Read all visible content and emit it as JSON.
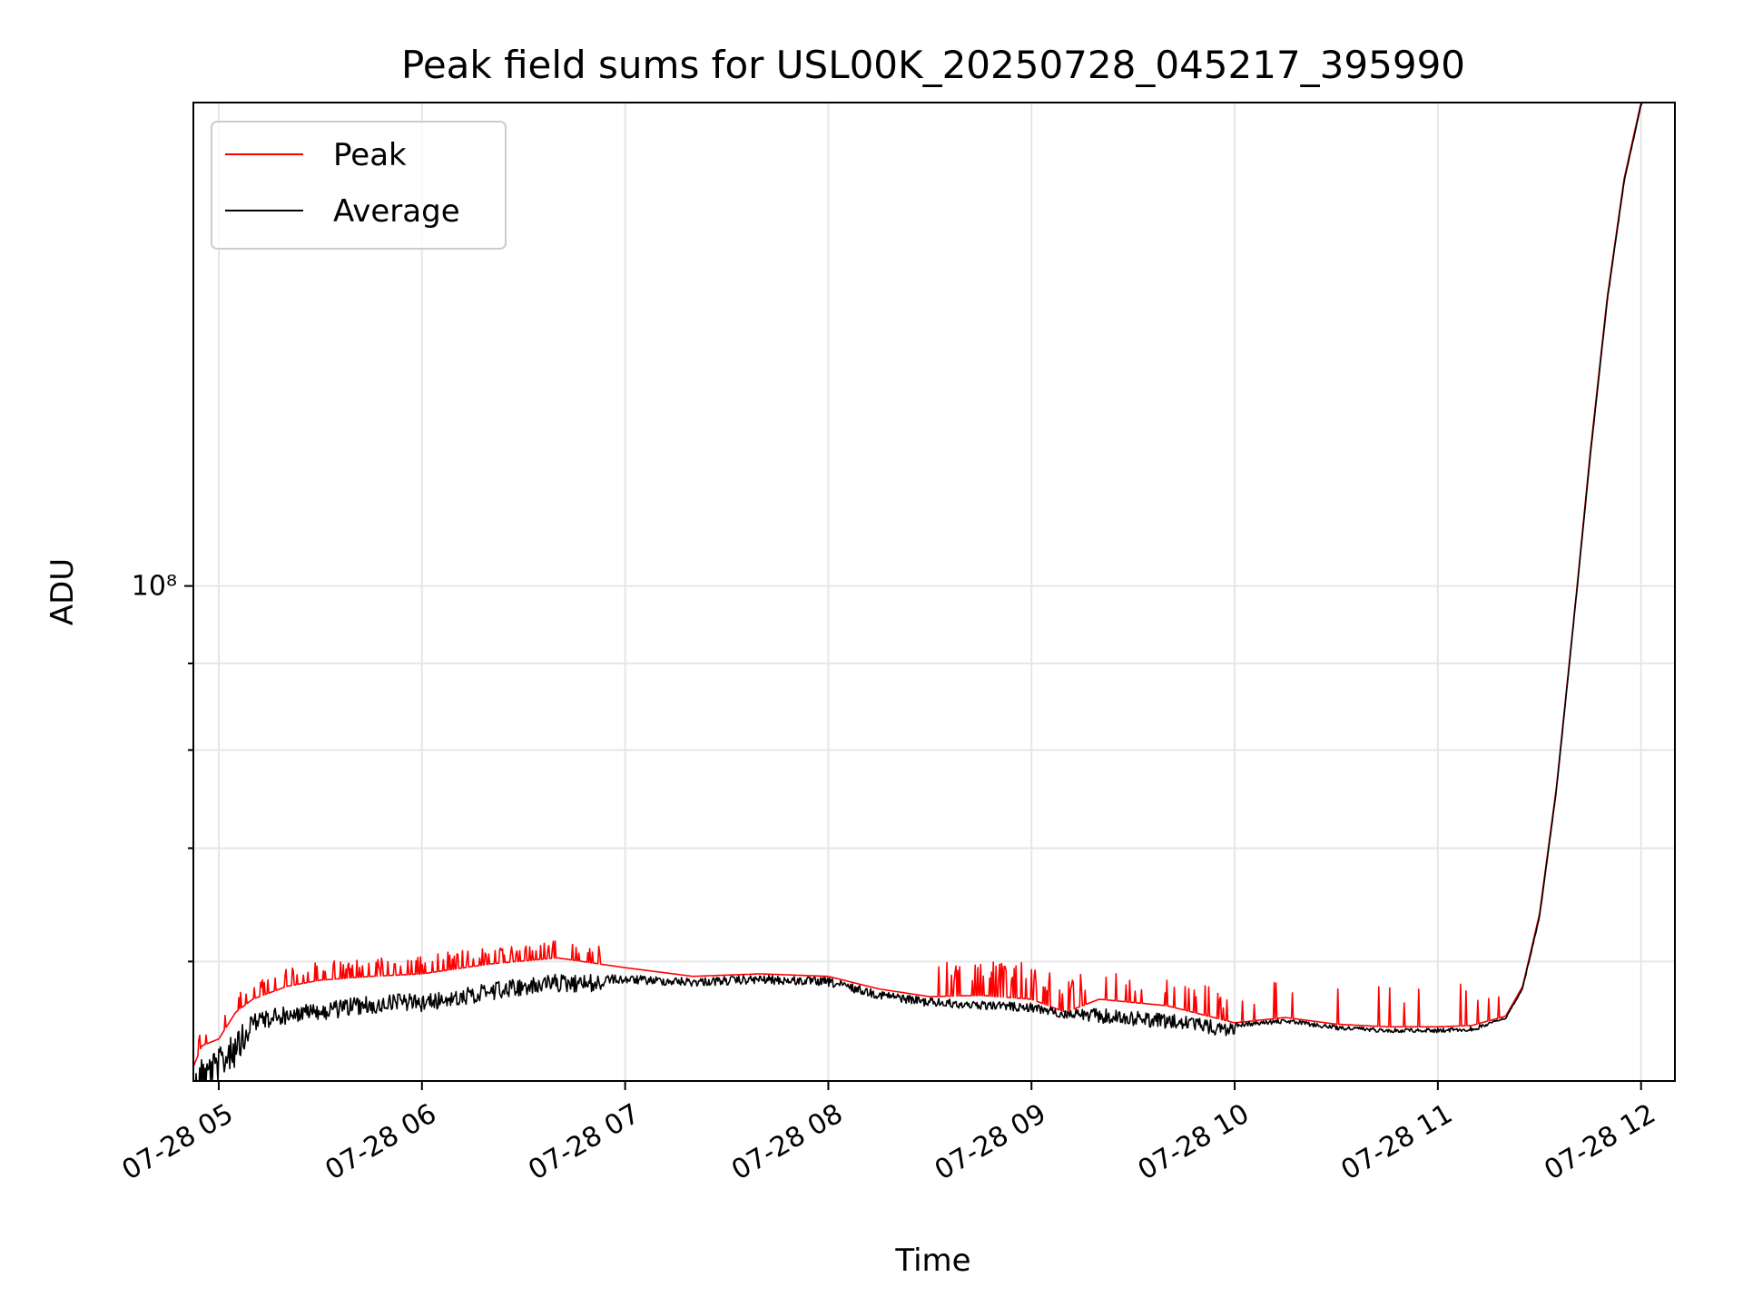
{
  "chart_data": {
    "type": "line",
    "title": "Peak field sums for USL00K_20250728_045217_395990",
    "xlabel": "Time",
    "ylabel": "ADU",
    "yscale": "log",
    "grid": true,
    "legend_position": "top-left",
    "xlim": [
      "2025-07-28T04:52:30",
      "2025-07-28T12:10:00"
    ],
    "ylim": [
      51000000,
      193000000
    ],
    "x_ticks": [
      {
        "t": "2025-07-28T05:00:00",
        "label": "07-28 05"
      },
      {
        "t": "2025-07-28T06:00:00",
        "label": "07-28 06"
      },
      {
        "t": "2025-07-28T07:00:00",
        "label": "07-28 07"
      },
      {
        "t": "2025-07-28T08:00:00",
        "label": "07-28 08"
      },
      {
        "t": "2025-07-28T09:00:00",
        "label": "07-28 09"
      },
      {
        "t": "2025-07-28T10:00:00",
        "label": "07-28 10"
      },
      {
        "t": "2025-07-28T11:00:00",
        "label": "07-28 11"
      },
      {
        "t": "2025-07-28T12:00:00",
        "label": "07-28 12"
      }
    ],
    "y_ticks": [
      {
        "value": 100000000,
        "label": "10⁸"
      }
    ],
    "y_minor_ticks": [
      60000000,
      70000000,
      80000000,
      90000000,
      200000000
    ],
    "colors": {
      "peak": "#ff0000",
      "average": "#000000"
    },
    "series": [
      {
        "name": "Peak",
        "color": "#ff0000",
        "x": [
          "2025-07-28T04:52:30",
          "2025-07-28T04:55:00",
          "2025-07-28T05:00:00",
          "2025-07-28T05:05:00",
          "2025-07-28T05:10:00",
          "2025-07-28T05:20:00",
          "2025-07-28T05:30:00",
          "2025-07-28T05:45:00",
          "2025-07-28T06:00:00",
          "2025-07-28T06:20:00",
          "2025-07-28T06:40:00",
          "2025-07-28T07:00:00",
          "2025-07-28T07:20:00",
          "2025-07-28T07:40:00",
          "2025-07-28T08:00:00",
          "2025-07-28T08:15:00",
          "2025-07-28T08:30:00",
          "2025-07-28T08:45:00",
          "2025-07-28T09:00:00",
          "2025-07-28T09:10:00",
          "2025-07-28T09:20:00",
          "2025-07-28T09:40:00",
          "2025-07-28T10:00:00",
          "2025-07-28T10:15:00",
          "2025-07-28T10:30:00",
          "2025-07-28T10:45:00",
          "2025-07-28T11:00:00",
          "2025-07-28T11:10:00",
          "2025-07-28T11:20:00",
          "2025-07-28T11:25:00",
          "2025-07-28T11:30:00",
          "2025-07-28T11:35:00",
          "2025-07-28T11:40:00",
          "2025-07-28T11:45:00",
          "2025-07-28T11:50:00",
          "2025-07-28T11:55:00",
          "2025-07-28T12:00:00",
          "2025-07-28T12:02:00"
        ],
        "y": [
          52000000,
          53500000,
          54000000,
          56000000,
          57000000,
          58000000,
          58500000,
          58800000,
          59000000,
          59800000,
          60300000,
          59500000,
          58800000,
          59000000,
          58800000,
          57800000,
          57200000,
          57300000,
          57000000,
          56000000,
          57000000,
          56500000,
          55200000,
          55600000,
          55100000,
          54900000,
          54900000,
          55000000,
          55700000,
          58000000,
          64000000,
          76000000,
          95000000,
          120000000,
          148000000,
          174000000,
          193000000,
          197000000
        ]
      },
      {
        "name": "Average",
        "color": "#000000",
        "x": [
          "2025-07-28T04:52:30",
          "2025-07-28T04:55:00",
          "2025-07-28T05:00:00",
          "2025-07-28T05:05:00",
          "2025-07-28T05:10:00",
          "2025-07-28T05:20:00",
          "2025-07-28T05:30:00",
          "2025-07-28T05:45:00",
          "2025-07-28T06:00:00",
          "2025-07-28T06:20:00",
          "2025-07-28T06:40:00",
          "2025-07-28T07:00:00",
          "2025-07-28T07:20:00",
          "2025-07-28T07:40:00",
          "2025-07-28T08:00:00",
          "2025-07-28T08:15:00",
          "2025-07-28T08:30:00",
          "2025-07-28T08:45:00",
          "2025-07-28T09:00:00",
          "2025-07-28T09:10:00",
          "2025-07-28T09:20:00",
          "2025-07-28T09:40:00",
          "2025-07-28T10:00:00",
          "2025-07-28T10:15:00",
          "2025-07-28T10:30:00",
          "2025-07-28T10:45:00",
          "2025-07-28T11:00:00",
          "2025-07-28T11:10:00",
          "2025-07-28T11:20:00",
          "2025-07-28T11:25:00",
          "2025-07-28T11:30:00",
          "2025-07-28T11:35:00",
          "2025-07-28T11:40:00",
          "2025-07-28T11:45:00",
          "2025-07-28T11:50:00",
          "2025-07-28T11:55:00",
          "2025-07-28T12:00:00",
          "2025-07-28T12:02:00"
        ],
        "y": [
          51500000,
          52800000,
          53300000,
          54500000,
          56000000,
          56500000,
          56800000,
          57300000,
          57500000,
          58300000,
          59000000,
          58900000,
          58700000,
          58900000,
          58700000,
          57700000,
          57100000,
          56900000,
          56700000,
          56200000,
          56300000,
          55900000,
          55200000,
          55500000,
          55000000,
          54800000,
          54800000,
          54900000,
          55600000,
          57900000,
          63800000,
          75800000,
          94800000,
          119500000,
          147500000,
          173500000,
          192500000,
          196500000
        ]
      }
    ]
  }
}
